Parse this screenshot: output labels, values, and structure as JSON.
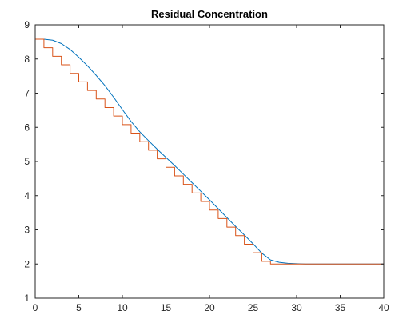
{
  "chart_data": {
    "type": "line",
    "title": "Residual Concentration",
    "xlabel": "",
    "ylabel": "",
    "xlim": [
      0,
      40
    ],
    "ylim": [
      1,
      9
    ],
    "grid": false,
    "legend": "none",
    "x_ticks": [
      0,
      5,
      10,
      15,
      20,
      25,
      30,
      35,
      40
    ],
    "y_ticks": [
      1,
      2,
      3,
      4,
      5,
      6,
      7,
      8,
      9
    ],
    "series": [
      {
        "style": "smooth",
        "color": "#0072BD",
        "x": [
          0,
          1,
          2,
          3,
          4,
          5,
          6,
          7,
          8,
          9,
          10,
          11,
          12,
          13,
          14,
          15,
          16,
          17,
          18,
          19,
          20,
          21,
          22,
          23,
          24,
          25,
          26,
          27,
          28,
          29,
          30,
          31,
          32,
          33,
          34,
          35,
          36,
          37,
          38,
          39,
          40
        ],
        "y": [
          8.58,
          8.58,
          8.55,
          8.45,
          8.28,
          8.05,
          7.8,
          7.52,
          7.22,
          6.88,
          6.52,
          6.17,
          5.87,
          5.61,
          5.36,
          5.12,
          4.88,
          4.63,
          4.38,
          4.13,
          3.88,
          3.62,
          3.36,
          3.1,
          2.85,
          2.59,
          2.32,
          2.12,
          2.05,
          2.02,
          2.01,
          2.0,
          2.0,
          2.0,
          2.0,
          2.0,
          2.0,
          2.0,
          2.0,
          2.0,
          2.0
        ]
      },
      {
        "style": "stairs",
        "color": "#D95319",
        "x": [
          0,
          1,
          2,
          3,
          4,
          5,
          6,
          7,
          8,
          9,
          10,
          11,
          12,
          13,
          14,
          15,
          16,
          17,
          18,
          19,
          20,
          21,
          22,
          23,
          24,
          25,
          26,
          27,
          40
        ],
        "y": [
          8.58,
          8.33,
          8.08,
          7.83,
          7.58,
          7.33,
          7.08,
          6.83,
          6.58,
          6.33,
          6.08,
          5.83,
          5.58,
          5.33,
          5.08,
          4.83,
          4.58,
          4.33,
          4.08,
          3.83,
          3.58,
          3.33,
          3.08,
          2.83,
          2.58,
          2.33,
          2.08,
          2.0,
          2.0
        ]
      }
    ]
  }
}
